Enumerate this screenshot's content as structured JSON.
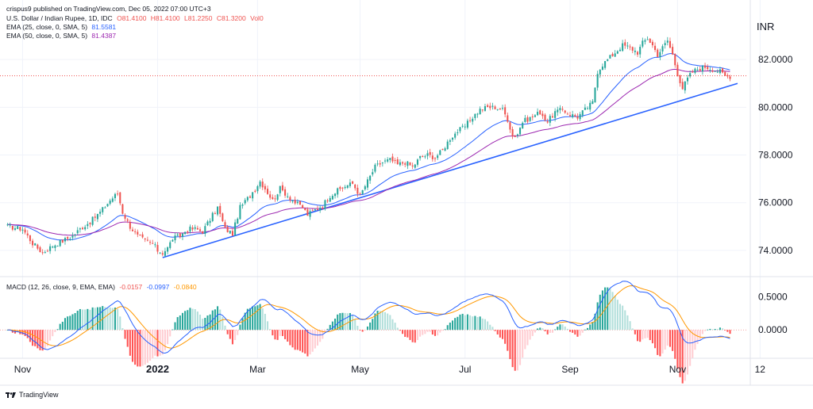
{
  "header": {
    "published": "crispus9 published on TradingView.com, Dec 05, 2022 07:00 UTC+3",
    "symbol": "U.S. Dollar / Indian Rupee, 1D, IDC",
    "ohlc": {
      "O": "O81.4100",
      "H": "H81.4100",
      "L": "L81.2250",
      "C": "C81.3200",
      "Vol": "Vol0"
    },
    "ema25_label": "EMA (25, close, 0, SMA, 5)",
    "ema25_value": "81.5581",
    "ema50_label": "EMA (50, close, 0, SMA, 5)",
    "ema50_value": "81.4387",
    "macd_label": "MACD (12, 26, close, 9, EMA, EMA)",
    "macd_hist": "-0.0157",
    "macd_line": "-0.0997",
    "macd_signal": "-0.0840",
    "currency": "INR",
    "watermark": "TradingView"
  },
  "colors": {
    "up": "#26a69a",
    "down": "#ef5350",
    "ema25": "#2962ff",
    "ema50": "#9c27b0",
    "macd": "#2962ff",
    "signal": "#ff9800",
    "trendline": "#2962ff",
    "lastprice": "#ef5350"
  },
  "chart_data": [
    {
      "type": "candlestick",
      "title": "U.S. Dollar / Indian Rupee, 1D",
      "y_ticks": [
        "74.0000",
        "76.0000",
        "78.0000",
        "80.0000",
        "82.0000"
      ],
      "x_ticks": [
        "Nov",
        "2022",
        "Mar",
        "May",
        "Jul",
        "Sep",
        "Nov",
        "12"
      ],
      "ylim": [
        73.2,
        83.9
      ],
      "last_price": 81.32,
      "close_anchors": [
        [
          0,
          75.0
        ],
        [
          6,
          74.9
        ],
        [
          10,
          74.3
        ],
        [
          14,
          73.9
        ],
        [
          18,
          74.2
        ],
        [
          22,
          74.4
        ],
        [
          26,
          74.6
        ],
        [
          29,
          74.9
        ],
        [
          33,
          75.2
        ],
        [
          37,
          75.6
        ],
        [
          41,
          76.1
        ],
        [
          44,
          76.4
        ],
        [
          46,
          75.6
        ],
        [
          49,
          75.0
        ],
        [
          52,
          74.6
        ],
        [
          55,
          74.4
        ],
        [
          58,
          74.3
        ],
        [
          60,
          74.0
        ],
        [
          62,
          73.9
        ],
        [
          64,
          74.1
        ],
        [
          66,
          74.5
        ],
        [
          69,
          74.6
        ],
        [
          72,
          74.9
        ],
        [
          75,
          74.9
        ],
        [
          78,
          74.8
        ],
        [
          81,
          75.3
        ],
        [
          84,
          75.8
        ],
        [
          87,
          74.9
        ],
        [
          90,
          74.7
        ],
        [
          93,
          75.8
        ],
        [
          97,
          76.3
        ],
        [
          101,
          76.9
        ],
        [
          103,
          76.6
        ],
        [
          106,
          76.1
        ],
        [
          109,
          76.6
        ],
        [
          112,
          76.3
        ],
        [
          115,
          76.0
        ],
        [
          118,
          75.8
        ],
        [
          120,
          75.5
        ],
        [
          123,
          75.7
        ],
        [
          126,
          75.9
        ],
        [
          129,
          76.3
        ],
        [
          132,
          76.5
        ],
        [
          135,
          76.7
        ],
        [
          138,
          76.8
        ],
        [
          141,
          76.3
        ],
        [
          144,
          76.9
        ],
        [
          147,
          77.5
        ],
        [
          150,
          77.7
        ],
        [
          153,
          77.8
        ],
        [
          156,
          77.6
        ],
        [
          159,
          77.7
        ],
        [
          162,
          77.5
        ],
        [
          165,
          77.9
        ],
        [
          168,
          78.0
        ],
        [
          171,
          77.9
        ],
        [
          174,
          78.2
        ],
        [
          177,
          78.7
        ],
        [
          180,
          79.0
        ],
        [
          183,
          79.2
        ],
        [
          186,
          79.6
        ],
        [
          189,
          79.9
        ],
        [
          192,
          80.0
        ],
        [
          195,
          80.0
        ],
        [
          198,
          79.9
        ],
        [
          200,
          79.5
        ],
        [
          202,
          78.8
        ],
        [
          204,
          78.9
        ],
        [
          206,
          79.4
        ],
        [
          208,
          79.5
        ],
        [
          210,
          79.6
        ],
        [
          213,
          79.8
        ],
        [
          216,
          79.4
        ],
        [
          219,
          79.8
        ],
        [
          222,
          79.9
        ],
        [
          225,
          79.7
        ],
        [
          228,
          79.6
        ],
        [
          231,
          79.9
        ],
        [
          234,
          80.2
        ],
        [
          236,
          81.5
        ],
        [
          238,
          81.8
        ],
        [
          240,
          82.0
        ],
        [
          243,
          82.3
        ],
        [
          246,
          82.6
        ],
        [
          249,
          82.5
        ],
        [
          252,
          82.3
        ],
        [
          254,
          82.7
        ],
        [
          256,
          82.9
        ],
        [
          258,
          82.6
        ],
        [
          260,
          82.2
        ],
        [
          262,
          82.5
        ],
        [
          264,
          82.8
        ],
        [
          266,
          82.2
        ],
        [
          268,
          81.4
        ],
        [
          270,
          80.8
        ],
        [
          272,
          81.2
        ],
        [
          274,
          81.5
        ],
        [
          276,
          81.6
        ],
        [
          279,
          81.7
        ],
        [
          282,
          81.6
        ],
        [
          285,
          81.5
        ],
        [
          287,
          81.3
        ]
      ],
      "series": [
        {
          "name": "EMA (25, close, 0, SMA, 5)",
          "last": 81.5581
        },
        {
          "name": "EMA (50, close, 0, SMA, 5)",
          "last": 81.4387
        }
      ]
    },
    {
      "type": "line",
      "title": "MACD (12, 26, close, 9, EMA, EMA)",
      "y_ticks": [
        "0.5000",
        "0.0000"
      ],
      "ylim": [
        -0.38,
        0.72
      ],
      "series": [
        {
          "name": "MACD",
          "last": -0.0997
        },
        {
          "name": "Signal",
          "last": -0.084
        },
        {
          "name": "Histogram",
          "last": -0.0157
        }
      ]
    }
  ]
}
